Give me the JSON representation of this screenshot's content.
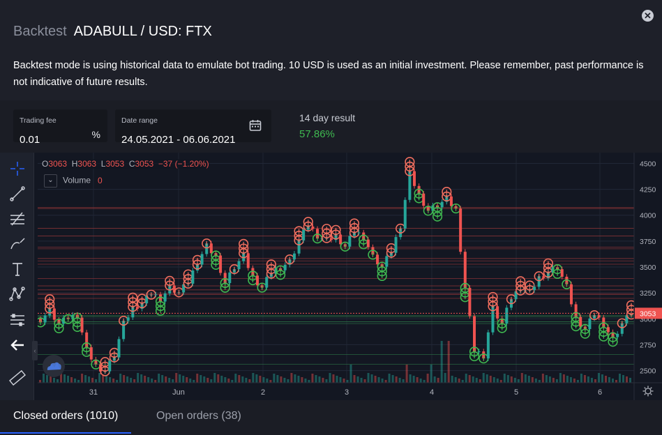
{
  "header": {
    "mode": "Backtest",
    "pair": "ADABULL / USD: FTX",
    "description": "Backtest mode is using historical data to emulate bot trading. 10 USD is used as an initial investment. Please remember, past performance is not indicative of future results."
  },
  "controls": {
    "fee_label": "Trading fee",
    "fee_value": "0.01",
    "fee_unit": "%",
    "range_label": "Date range",
    "range_value": "24.05.2021 - 06.06.2021",
    "result_label": "14 day result",
    "result_value": "57.86%"
  },
  "legend": {
    "o_label": "O",
    "o": "3063",
    "h_label": "H",
    "h": "3063",
    "l_label": "L",
    "l": "3053",
    "c_label": "C",
    "c": "3053",
    "change": "−37 (−1.20%)",
    "volume_label": "Volume",
    "volume_value": "0"
  },
  "colors": {
    "up": "#26a69a",
    "down": "#ef5350",
    "buy": "#3fb950",
    "sell": "#f16f5f",
    "accent": "#2962ff"
  },
  "chart_data": {
    "type": "candlestick",
    "x_ticks": [
      "31",
      "Jun",
      "2",
      "3",
      "4",
      "5",
      "6"
    ],
    "y_ticks": [
      2500,
      2750,
      3000,
      3250,
      3500,
      3750,
      4000,
      4250,
      4500
    ],
    "ylim": [
      2450,
      4550
    ],
    "last_price": "3053",
    "price_path": [
      3000,
      3080,
      2950,
      3010,
      3040,
      2700,
      2550,
      2500,
      2650,
      2950,
      3100,
      3150,
      3250,
      3200,
      3300,
      3250,
      3350,
      3550,
      3700,
      3600,
      3350,
      3500,
      3600,
      3400,
      3300,
      3450,
      3500,
      3550,
      3750,
      3900,
      3800,
      3750,
      3800,
      3700,
      3850,
      3800,
      3600,
      3500,
      3650,
      3900,
      4400,
      4200,
      4050,
      4100,
      4150,
      4050,
      3300,
      2700,
      2650,
      3100,
      2950,
      3200,
      3300,
      3250,
      3400,
      3450,
      3500,
      3300,
      3000,
      2900,
      3050,
      2950,
      2800,
      2950,
      3050
    ]
  },
  "icons": [
    "crosshair-icon",
    "trendline-icon",
    "fib-icon",
    "brush-icon",
    "text-icon",
    "pattern-icon",
    "measure-icon",
    "back-icon",
    "ruler-icon",
    "calendar-icon",
    "close-icon",
    "settings-icon",
    "tv-logo-icon"
  ],
  "tabs": {
    "closed": "Closed orders (1010)",
    "open": "Open orders (38)"
  }
}
